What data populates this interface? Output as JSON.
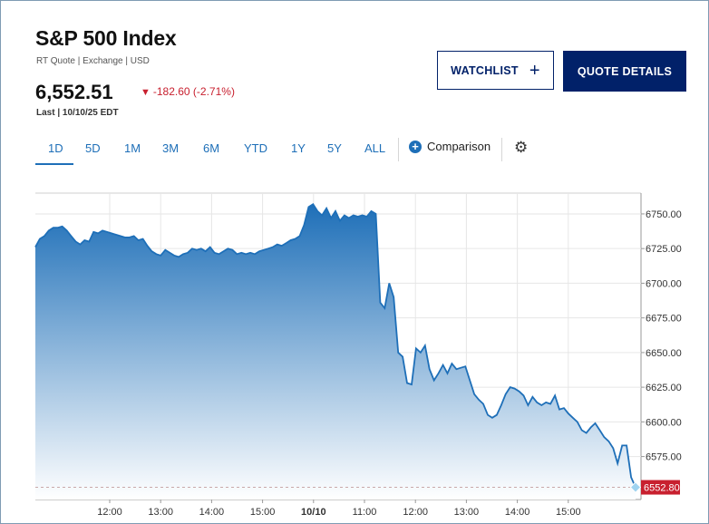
{
  "header": {
    "title": "S&P 500 Index",
    "subline": "RT Quote | Exchange | USD",
    "price": "6,552.51",
    "change": "-182.60 (-2.71%)",
    "last": "Last | 10/10/25 EDT"
  },
  "buttons": {
    "watchlist": "WATCHLIST",
    "quote_details": "QUOTE DETAILS"
  },
  "tabs": [
    "1D",
    "5D",
    "1M",
    "3M",
    "6M",
    "YTD",
    "1Y",
    "5Y",
    "ALL"
  ],
  "active_tab": "1D",
  "comparison_label": "Comparison",
  "icons": {
    "change_direction": "down-triangle-icon",
    "comparison": "plus-circle-icon",
    "settings": "gear-icon"
  },
  "colors": {
    "navy": "#012169",
    "accent_blue": "#1e6fb8",
    "negative": "#c8202f",
    "area_top": "#1e6fb8",
    "area_bottom": "#ffffff"
  },
  "chart_data": {
    "type": "area",
    "x_tick_labels": [
      "12:00",
      "13:00",
      "14:00",
      "15:00",
      "10/10",
      "11:00",
      "12:00",
      "13:00",
      "14:00",
      "15:00"
    ],
    "y_tick_labels": [
      "6750.00",
      "6725.00",
      "6700.00",
      "6675.00",
      "6650.00",
      "6625.00",
      "6600.00",
      "6575.00"
    ],
    "y_ticks": [
      6750,
      6725,
      6700,
      6675,
      6650,
      6625,
      6600,
      6575
    ],
    "ylim": [
      6544,
      6765
    ],
    "grid": true,
    "last_value_label": "6552.80",
    "last_value": 6552.8,
    "series": [
      {
        "values": [
          6726,
          6732,
          6734,
          6738,
          6740,
          6740,
          6741,
          6738,
          6734,
          6730,
          6728,
          6731,
          6730,
          6737,
          6736,
          6738,
          6737,
          6736,
          6735,
          6734,
          6733,
          6733,
          6734,
          6731,
          6732,
          6727,
          6723,
          6721,
          6720,
          6724,
          6722,
          6720,
          6719,
          6721,
          6722,
          6725,
          6724,
          6725,
          6723,
          6726,
          6722,
          6721,
          6723,
          6725,
          6724,
          6721,
          6722,
          6721,
          6722,
          6721,
          6723,
          6724,
          6725,
          6726,
          6728,
          6727,
          6729,
          6731,
          6732,
          6734,
          6742,
          6755,
          6757,
          6752,
          6749,
          6754,
          6747,
          6752,
          6745,
          6749,
          6747,
          6749,
          6748,
          6749,
          6748,
          6752,
          6750,
          6686,
          6682,
          6700,
          6690,
          6650,
          6647,
          6628,
          6627,
          6653,
          6650,
          6655,
          6638,
          6630,
          6635,
          6641,
          6635,
          6642,
          6638,
          6639,
          6640,
          6630,
          6620,
          6616,
          6613,
          6605,
          6603,
          6605,
          6612,
          6620,
          6625,
          6624,
          6622,
          6619,
          6612,
          6618,
          6614,
          6612,
          6614,
          6613,
          6619,
          6609,
          6610,
          6606,
          6603,
          6600,
          6594,
          6592,
          6596,
          6599,
          6594,
          6589,
          6586,
          6581,
          6570,
          6583,
          6583,
          6560,
          6552.8
        ]
      }
    ]
  }
}
